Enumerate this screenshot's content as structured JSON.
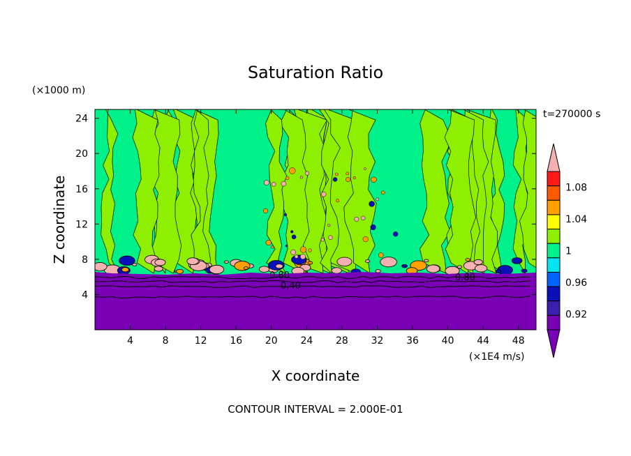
{
  "chart_data": {
    "type": "contour",
    "title": "Saturation Ratio",
    "xlabel": "X coordinate",
    "ylabel": "Z coordinate",
    "x_unit": "(×1E4 m/s)",
    "y_unit": "(×1000 m)",
    "time_label": "t=270000 s",
    "footer": "CONTOUR INTERVAL = 2.000E-01",
    "xlim": [
      0,
      50
    ],
    "ylim": [
      0,
      25
    ],
    "x_ticks": [
      4,
      8,
      12,
      16,
      20,
      24,
      28,
      32,
      36,
      40,
      44,
      48
    ],
    "y_ticks": [
      4,
      8,
      12,
      16,
      20,
      24
    ],
    "contour_labels": [
      "0.80",
      "0.40",
      "0.80"
    ],
    "colorbar": {
      "levels": [
        0.9,
        0.92,
        0.94,
        0.96,
        0.98,
        1.0,
        1.02,
        1.04,
        1.06,
        1.08,
        1.1
      ],
      "tick_labels": [
        "0.92",
        "0.96",
        "1",
        "1.04",
        "1.08"
      ],
      "colors": [
        "#7a00b8",
        "#3c1fae",
        "#0a10b8",
        "#0064ff",
        "#00e5f0",
        "#00f08a",
        "#8ef000",
        "#ffff00",
        "#ffa000",
        "#ff5a00",
        "#ff1a1a",
        "#f5b0b0"
      ]
    }
  }
}
